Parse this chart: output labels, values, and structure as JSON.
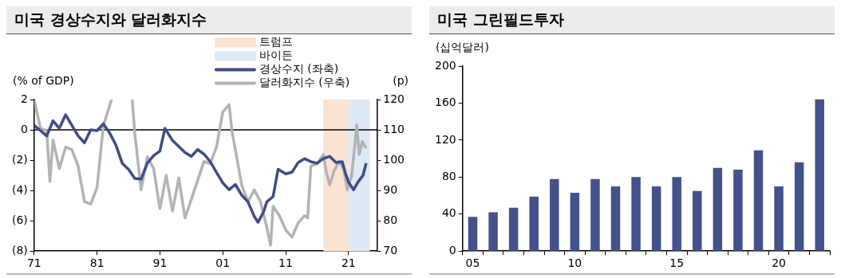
{
  "chart_data": [
    {
      "type": "line",
      "title": "미국 경상수지와 달러화지수",
      "ylabel": "(% of GDP)",
      "y2label": "(p)",
      "legend": "top right",
      "xlim": [
        1971,
        2025.5
      ],
      "xticks": [
        {
          "value": 1971,
          "label": "71"
        },
        {
          "value": 1981,
          "label": "81"
        },
        {
          "value": 1991,
          "label": "91"
        },
        {
          "value": 2001,
          "label": "01"
        },
        {
          "value": 2011,
          "label": "11"
        },
        {
          "value": 2021,
          "label": "21"
        }
      ],
      "ylim": [
        -8,
        2
      ],
      "yticks": [
        {
          "value": -8,
          "label": "(8)"
        },
        {
          "value": -6,
          "label": "(6)"
        },
        {
          "value": -4,
          "label": "(4)"
        },
        {
          "value": -2,
          "label": "(2)"
        },
        0,
        2
      ],
      "y2lim": [
        70,
        120
      ],
      "y2ticks": [
        70,
        80,
        90,
        100,
        110,
        120
      ],
      "bands": [
        {
          "axis": "x",
          "from": 2017,
          "to": 2021,
          "label": "트럼프",
          "color": "#fbe3d2"
        },
        {
          "axis": "x",
          "from": 2021,
          "to": 2024.4,
          "label": "바이든",
          "color": "#dfe9f6"
        }
      ],
      "ref_lines": [
        {
          "axis": "y",
          "value": 0,
          "color": "#000000"
        }
      ],
      "series": [
        {
          "name": "경상수지 (좌축)",
          "color": "#3f4c87",
          "x": [
            1971,
            1973,
            1974,
            1975,
            1976,
            1978,
            1979,
            1980,
            1981,
            1982,
            1983,
            1984,
            1985,
            1986,
            1987,
            1988,
            1989,
            1990,
            1991,
            1991.8,
            1993,
            1995,
            1996,
            1997,
            1998,
            1999,
            2000,
            2001,
            2002,
            2003,
            2004,
            2005,
            2006,
            2006.6,
            2007.5,
            2008,
            2009,
            2009.8,
            2011,
            2012,
            2013,
            2014,
            2015,
            2016,
            2017,
            2018,
            2019,
            2020,
            2020.5,
            2021,
            2021.8,
            2022.5,
            2023.3,
            2023.8
          ],
          "values": [
            0.3,
            -0.4,
            0.6,
            0.1,
            1.0,
            -0.4,
            -0.85,
            0.0,
            -0.05,
            0.4,
            -0.2,
            -1.0,
            -2.2,
            -2.6,
            -3.2,
            -3.25,
            -2.2,
            -1.7,
            -1.4,
            0.1,
            -0.7,
            -1.5,
            -1.75,
            -1.3,
            -1.6,
            -2.1,
            -2.8,
            -3.5,
            -3.95,
            -3.6,
            -4.3,
            -4.75,
            -5.7,
            -6.1,
            -5.4,
            -4.75,
            -4.4,
            -2.6,
            -2.9,
            -2.8,
            -2.15,
            -1.9,
            -2.1,
            -2.2,
            -1.9,
            -1.75,
            -2.15,
            -2.1,
            -2.85,
            -3.45,
            -3.95,
            -3.45,
            -3.0,
            -2.2
          ]
        },
        {
          "name": "달러화지수 (우축)",
          "color": "#b3b3b3",
          "axis": "y2",
          "x": [
            1971,
            1972,
            1973,
            1973.5,
            1974,
            1975,
            1976,
            1977,
            1978,
            1979,
            1980,
            1981,
            1982,
            1983.3,
            1985,
            1986.6,
            1987,
            1988,
            1989,
            1990,
            1991,
            1992,
            1993,
            1994,
            1995,
            1996,
            1997,
            1998,
            1999,
            2000,
            2001,
            2002,
            2002.5,
            2003,
            2004,
            2005,
            2006,
            2007,
            2008,
            2008.6,
            2009,
            2010,
            2011,
            2012,
            2013,
            2014,
            2014.5,
            2015,
            2016,
            2017,
            2017.5,
            2018,
            2018.7,
            2019.5,
            2020.2,
            2020.8,
            2021.5,
            2022,
            2022.3,
            2022.7,
            2023.2,
            2023.8
          ],
          "values": [
            120,
            110.5,
            109.7,
            93,
            106.6,
            97.2,
            104.3,
            103.5,
            98,
            86.3,
            85.5,
            91,
            111.3,
            120,
            null,
            120,
            109,
            90.2,
            101.1,
            97.2,
            84,
            95,
            83.2,
            94.1,
            80.9,
            87.1,
            93.3,
            99.6,
            98.8,
            104.3,
            115.9,
            118.3,
            109,
            103.5,
            91.8,
            86.3,
            90.2,
            86.3,
            77.8,
            71.9,
            84.8,
            81.7,
            77,
            74.6,
            79.3,
            81.7,
            80.9,
            98,
            98.8,
            101.9,
            95.7,
            91.8,
            96.5,
            99.6,
            97.2,
            90.2,
            95,
            105,
            111.7,
            101.9,
            106.2,
            103.9
          ]
        }
      ]
    },
    {
      "type": "bar",
      "title": "미국 그린필드투자",
      "ylabel": "(십억달러)",
      "categories": [
        "05",
        null,
        null,
        null,
        null,
        "10",
        null,
        null,
        null,
        null,
        "15",
        null,
        null,
        null,
        null,
        "20",
        null,
        null
      ],
      "values": [
        37,
        42,
        47,
        59,
        78,
        63,
        78,
        70,
        80,
        70,
        80,
        65,
        90,
        88,
        109,
        70,
        96,
        164
      ],
      "color": "#44528a",
      "ylim": [
        0,
        200
      ],
      "yticks": [
        0,
        40,
        80,
        120,
        160,
        200
      ]
    }
  ]
}
